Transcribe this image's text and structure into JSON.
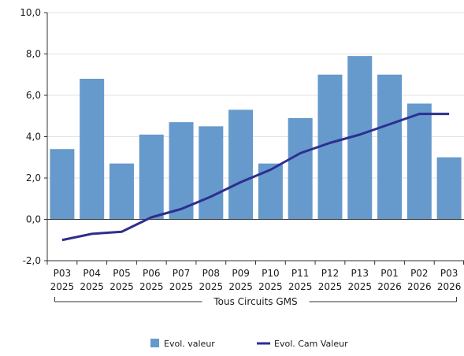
{
  "chart_data": {
    "type": "bar",
    "categories": [
      [
        "P03",
        "2025"
      ],
      [
        "P04",
        "2025"
      ],
      [
        "P05",
        "2025"
      ],
      [
        "P06",
        "2025"
      ],
      [
        "P07",
        "2025"
      ],
      [
        "P08",
        "2025"
      ],
      [
        "P09",
        "2025"
      ],
      [
        "P10",
        "2025"
      ],
      [
        "P11",
        "2025"
      ],
      [
        "P12",
        "2025"
      ],
      [
        "P13",
        "2025"
      ],
      [
        "P01",
        "2026"
      ],
      [
        "P02",
        "2026"
      ],
      [
        "P03",
        "2026"
      ]
    ],
    "group_label": "Tous Circuits GMS",
    "series": [
      {
        "name": "Evol.  valeur",
        "type": "bar",
        "color": "#6699cc",
        "values": [
          3.4,
          6.8,
          2.7,
          4.1,
          4.7,
          4.5,
          5.3,
          2.7,
          4.9,
          7.0,
          7.9,
          7.0,
          5.6,
          3.0
        ]
      },
      {
        "name": "Evol. Cam Valeur",
        "type": "line",
        "color": "#2e2e8f",
        "values": [
          -1.0,
          -0.7,
          -0.6,
          0.1,
          0.5,
          1.1,
          1.8,
          2.4,
          3.2,
          3.7,
          4.1,
          4.6,
          5.1,
          5.1
        ]
      }
    ],
    "ylim": [
      -2,
      10
    ],
    "yticks": [
      "-2,0",
      "0,0",
      "2,0",
      "4,0",
      "6,0",
      "8,0",
      "10,0"
    ],
    "yticks_values": [
      -2,
      0,
      2,
      4,
      6,
      8,
      10
    ],
    "grid": true,
    "legend_position": "bottom"
  }
}
